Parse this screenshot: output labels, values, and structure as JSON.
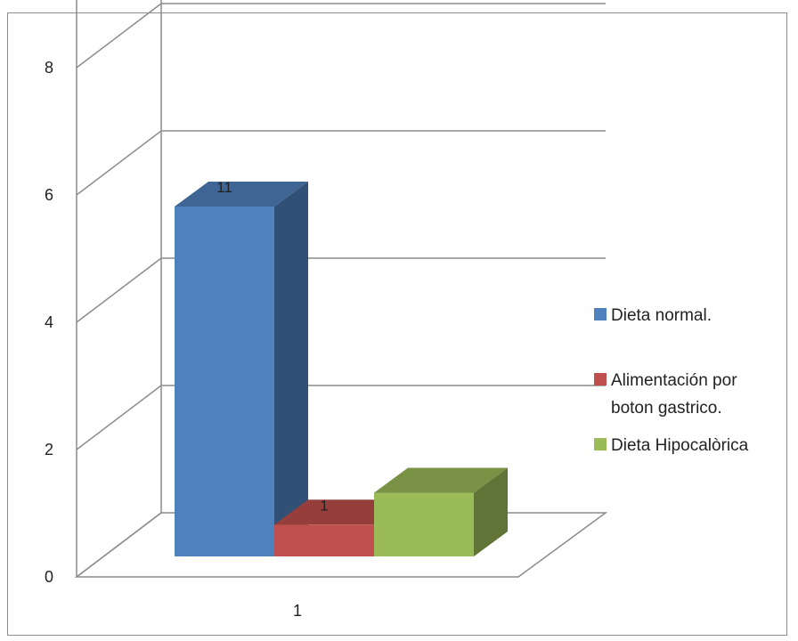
{
  "chart_data": {
    "type": "bar",
    "title": "",
    "xlabel": "",
    "ylabel": "",
    "categories": [
      "1"
    ],
    "ylim": [
      0,
      12
    ],
    "yticks": [
      0,
      2,
      4,
      6,
      8,
      10,
      12
    ],
    "grid": true,
    "legend_position": "right",
    "series": [
      {
        "name": "Dieta normal.",
        "values": [
          11
        ],
        "color": "#4f81bd",
        "data_label": "11"
      },
      {
        "name": "Alimentación por boton gastrico.",
        "values": [
          1
        ],
        "color": "#c0504d",
        "data_label": "1"
      },
      {
        "name": "Dieta Hipocalòrica",
        "values": [
          2
        ],
        "color": "#9bbb59",
        "data_label": ""
      }
    ]
  }
}
